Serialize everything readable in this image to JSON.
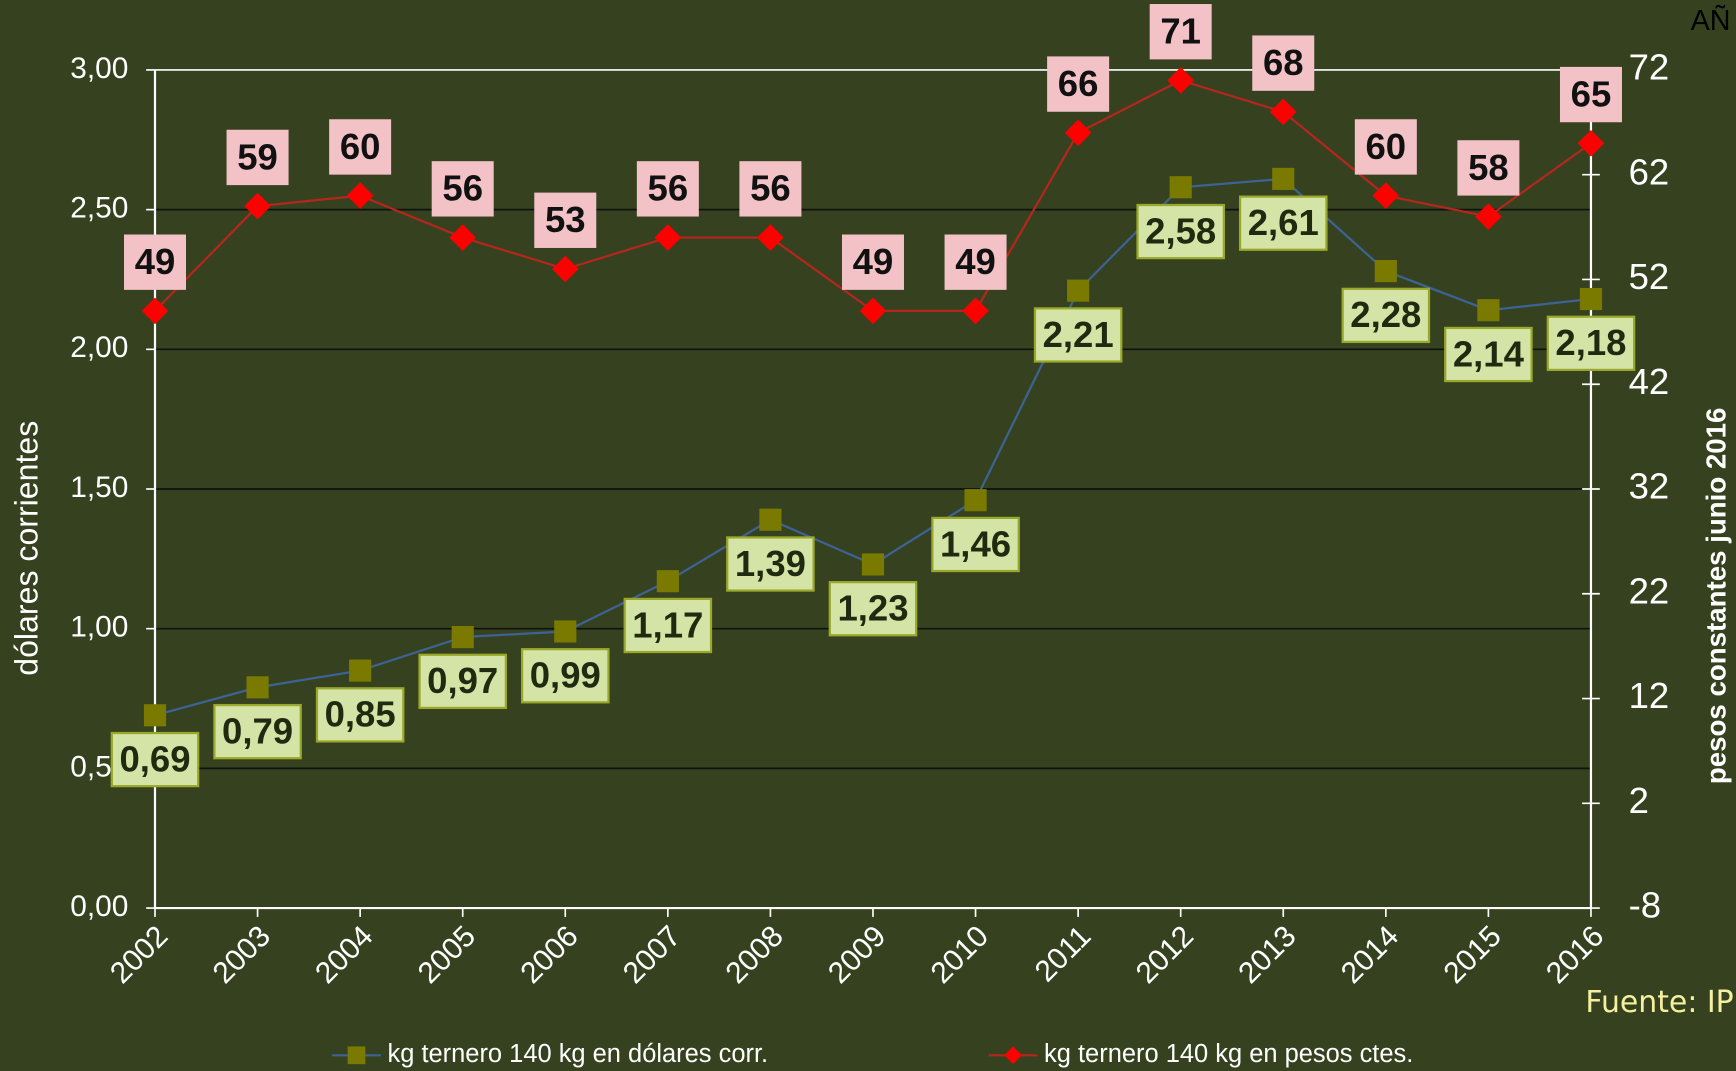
{
  "chart_data": {
    "type": "line",
    "categories": [
      "2002",
      "2003",
      "2004",
      "2005",
      "2006",
      "2007",
      "2008",
      "2009",
      "2010",
      "2011",
      "2012",
      "2013",
      "2014",
      "2015",
      "2016"
    ],
    "y_label": "dólares corrientes",
    "y2_label": "pesos constantes  junio 2016",
    "ylim": [
      0,
      3
    ],
    "yticks": [
      {
        "value": 0,
        "label": "0,00"
      },
      {
        "value": 0.5,
        "label": "0,50"
      },
      {
        "value": 1,
        "label": "1,00"
      },
      {
        "value": 1.5,
        "label": "1,50"
      },
      {
        "value": 2,
        "label": "2,00"
      },
      {
        "value": 2.5,
        "label": "2,50"
      },
      {
        "value": 3,
        "label": "3,00"
      }
    ],
    "y2lim": [
      -8,
      72
    ],
    "y2ticks": [
      -8,
      2,
      12,
      22,
      32,
      42,
      52,
      62,
      72
    ],
    "grid": true,
    "series": [
      {
        "name": "kg ternero 140 kg en dólares corr.",
        "color": "#3d6396",
        "marker_color": "#7a7a00",
        "values": [
          0.69,
          0.79,
          0.85,
          0.97,
          0.99,
          1.17,
          1.39,
          1.23,
          1.46,
          2.21,
          2.58,
          2.61,
          2.28,
          2.14,
          2.18
        ],
        "value_labels": [
          "0,69",
          "0,79",
          "0,85",
          "0,97",
          "0,99",
          "1,17",
          "1,39",
          "1,23",
          "1,46",
          "2,21",
          "2,58",
          "2,61",
          "2,28",
          "2,14",
          "2,18"
        ]
      },
      {
        "name": "kg ternero 140 kg en pesos ctes.",
        "color": "#b5261c",
        "marker_color": "#ff0000",
        "axis": "y2",
        "values": [
          49,
          59,
          60,
          56,
          53,
          56,
          56,
          49,
          49,
          66,
          71,
          68,
          60,
          58,
          65
        ]
      }
    ],
    "annotations": [
      "Fuente: IP",
      "AÑ"
    ]
  }
}
